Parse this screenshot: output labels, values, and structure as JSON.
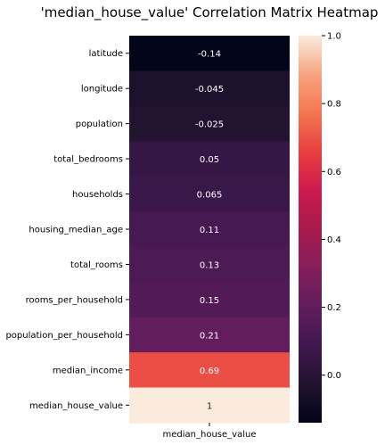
{
  "chart_data": {
    "type": "heatmap",
    "title": "'median_house_value' Correlation Matrix Heatmap",
    "columns": [
      "median_house_value"
    ],
    "rows": [
      "latitude",
      "longitude",
      "population",
      "total_bedrooms",
      "households",
      "housing_median_age",
      "total_rooms",
      "rooms_per_household",
      "population_per_household",
      "median_income",
      "median_house_value"
    ],
    "values": [
      -0.14,
      -0.045,
      -0.025,
      0.05,
      0.065,
      0.11,
      0.13,
      0.15,
      0.21,
      0.69,
      1
    ],
    "value_labels": [
      "-0.14",
      "-0.045",
      "-0.025",
      "0.05",
      "0.065",
      "0.11",
      "0.13",
      "0.15",
      "0.21",
      "0.69",
      "1"
    ],
    "colorbar": {
      "colormap": "rocket",
      "vmin": -0.14,
      "vmax": 1.0,
      "ticks": [
        "0.0",
        "0.2",
        "0.4",
        "0.6",
        "0.8",
        "1.0"
      ]
    }
  }
}
